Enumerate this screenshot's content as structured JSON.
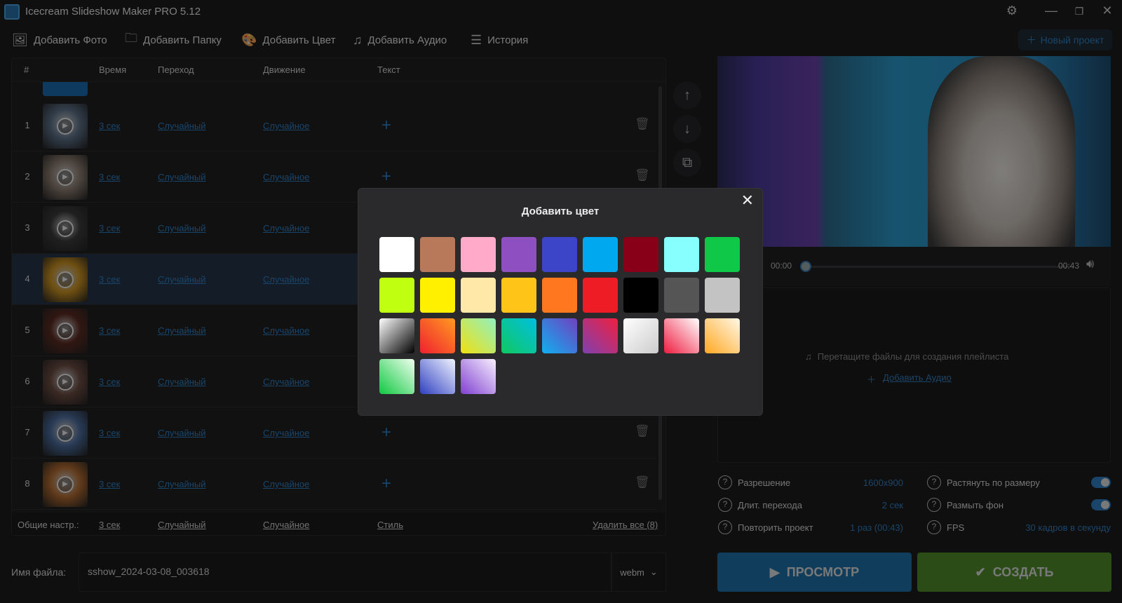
{
  "window": {
    "title": "Icecream Slideshow Maker PRO 5.12"
  },
  "toolbar": {
    "add_photo": "Добавить Фото",
    "add_folder": "Добавить Папку",
    "add_color": "Добавить Цвет",
    "add_audio": "Добавить Аудио",
    "history": "История",
    "new_project": "Новый проект"
  },
  "table": {
    "headers": {
      "num": "#",
      "time": "Время",
      "transition": "Переход",
      "motion": "Движение",
      "text": "Текст"
    },
    "rows": [
      {
        "num": "1",
        "time": "3 сек",
        "transition": "Случайный",
        "motion": "Случайное",
        "thumb": "#5a6e86"
      },
      {
        "num": "2",
        "time": "3 сек",
        "transition": "Случайный",
        "motion": "Случайное",
        "thumb": "#8a7a6e"
      },
      {
        "num": "3",
        "time": "3 сек",
        "transition": "Случайный",
        "motion": "Случайное",
        "thumb": "#3a3a3c"
      },
      {
        "num": "4",
        "time": "3 сек",
        "transition": "Случайный",
        "motion": "Случайное",
        "thumb": "#c89020",
        "selected": true
      },
      {
        "num": "5",
        "time": "3 сек",
        "transition": "Случайный",
        "motion": "Случайное",
        "thumb": "#5a2a22"
      },
      {
        "num": "6",
        "time": "3 сек",
        "transition": "Случайный",
        "motion": "Случайное",
        "thumb": "#6a4a40"
      },
      {
        "num": "7",
        "time": "3 сек",
        "transition": "Случайный",
        "motion": "Случайное",
        "thumb": "#4a6a9a"
      },
      {
        "num": "8",
        "time": "3 сек",
        "transition": "Случайный",
        "motion": "Случайное",
        "thumb": "#b06a30"
      }
    ],
    "footer": {
      "label": "Общие настр.:",
      "time": "3 сек",
      "transition": "Случайный",
      "motion": "Случайное",
      "style": "Стиль",
      "delete_all": "Удалить все (8)"
    }
  },
  "file": {
    "label": "Имя файла:",
    "value": "sshow_2024-03-08_003618",
    "format": "webm"
  },
  "player": {
    "current": "00:00",
    "total": "00:43",
    "progress": 0
  },
  "playlist": {
    "hint": "Перетащите файлы для создания плейлиста",
    "add_audio": "Добавить Аудио"
  },
  "settings": {
    "resolution": {
      "label": "Разрешение",
      "value": "1600x900"
    },
    "transition_duration": {
      "label": "Длит. перехода",
      "value": "2 сек"
    },
    "repeat": {
      "label": "Повторить проект",
      "value": "1 раз (00:43)"
    },
    "stretch": {
      "label": "Растянуть по размеру",
      "on": true
    },
    "blur": {
      "label": "Размыть фон",
      "on": true
    },
    "fps": {
      "label": "FPS",
      "value": "30 кадров в секунду"
    }
  },
  "buttons": {
    "preview": "ПРОСМОТР",
    "create": "СОЗДАТЬ"
  },
  "colors": {
    "accent": "#2e7fc2",
    "preview_btn": "#1e6fa8",
    "create_btn": "#4f8a2a"
  },
  "modal": {
    "title": "Добавить цвет",
    "swatches": [
      "#ffffff",
      "#b8785a",
      "#ffaac8",
      "#8e50c0",
      "#3c44c8",
      "#00a8f0",
      "#880018",
      "#88ffff",
      "#10c848",
      "#c0ff10",
      "#fff000",
      "#ffe8a8",
      "#ffc418",
      "#ff7820",
      "#ee1c24",
      "#000000",
      "#555555",
      "#c3c3c3",
      "linear-gradient(135deg,#fff,#000)",
      "linear-gradient(45deg,#f02030,#ff9a20)",
      "linear-gradient(45deg,#f0e010,#90f0c0)",
      "linear-gradient(45deg,#10c860,#00c0e0)",
      "linear-gradient(45deg,#10b0f0,#7040c0)",
      "linear-gradient(45deg,#8040b0,#f02040)",
      "linear-gradient(135deg,#fff,#ccc)",
      "linear-gradient(45deg,#ee1c40,#fff)",
      "linear-gradient(45deg,#ffa820,#fff8e8)",
      "linear-gradient(45deg,#10c840,#f0fff0)",
      "linear-gradient(45deg,#3040c0,#f0f4ff)",
      "linear-gradient(45deg,#8040d0,#f8f0ff)"
    ]
  }
}
